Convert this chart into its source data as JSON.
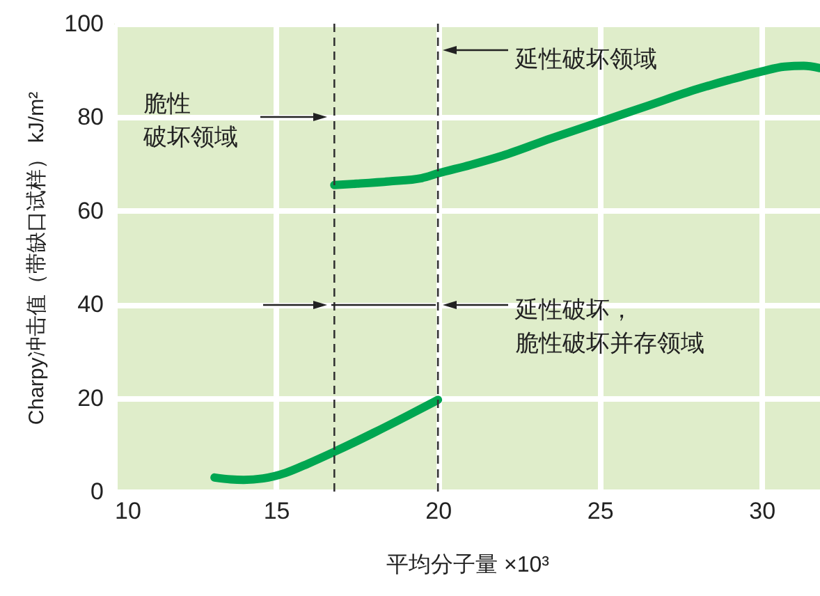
{
  "chart_data": {
    "type": "line",
    "xlabel": "平均分子量 ×10³",
    "ylabel": "Charpy冲击值（带缺口试样） kJ/m²",
    "xlim": [
      10,
      31.8
    ],
    "xticks": [
      10,
      15,
      20,
      25,
      30
    ],
    "ylim": [
      0,
      100
    ],
    "yticks": [
      0,
      20,
      40,
      60,
      80,
      100
    ],
    "grid": true,
    "line_style": "solid",
    "series": [
      {
        "color": "#00a651",
        "x": [
          13.1,
          13.6,
          14,
          14.6,
          15.3,
          16,
          16.8,
          18,
          19,
          20
        ],
        "values": [
          3,
          2.6,
          2.5,
          2.8,
          4,
          6,
          8.5,
          12.5,
          16,
          19.6
        ]
      },
      {
        "color": "#00a651",
        "x": [
          16.8,
          17.5,
          18.5,
          19.5,
          20,
          21,
          22,
          23.5,
          25,
          26.5,
          28,
          29,
          30,
          30.7,
          31.3,
          31.8
        ],
        "values": [
          65.5,
          65.8,
          66.3,
          67,
          68,
          69.8,
          71.8,
          75.5,
          79,
          82.5,
          86,
          88,
          89.8,
          90.8,
          91,
          90.5
        ]
      }
    ],
    "ref_lines": [
      {
        "axis": "x",
        "value": 16.8,
        "line_style": "dashed",
        "color": "#333333"
      },
      {
        "axis": "x",
        "value": 20,
        "line_style": "dashed",
        "color": "#333333"
      }
    ],
    "annotations": [
      "延性破坏领域",
      "脆性破坏领域",
      "延性破坏，脆性破坏并存领域"
    ]
  }
}
